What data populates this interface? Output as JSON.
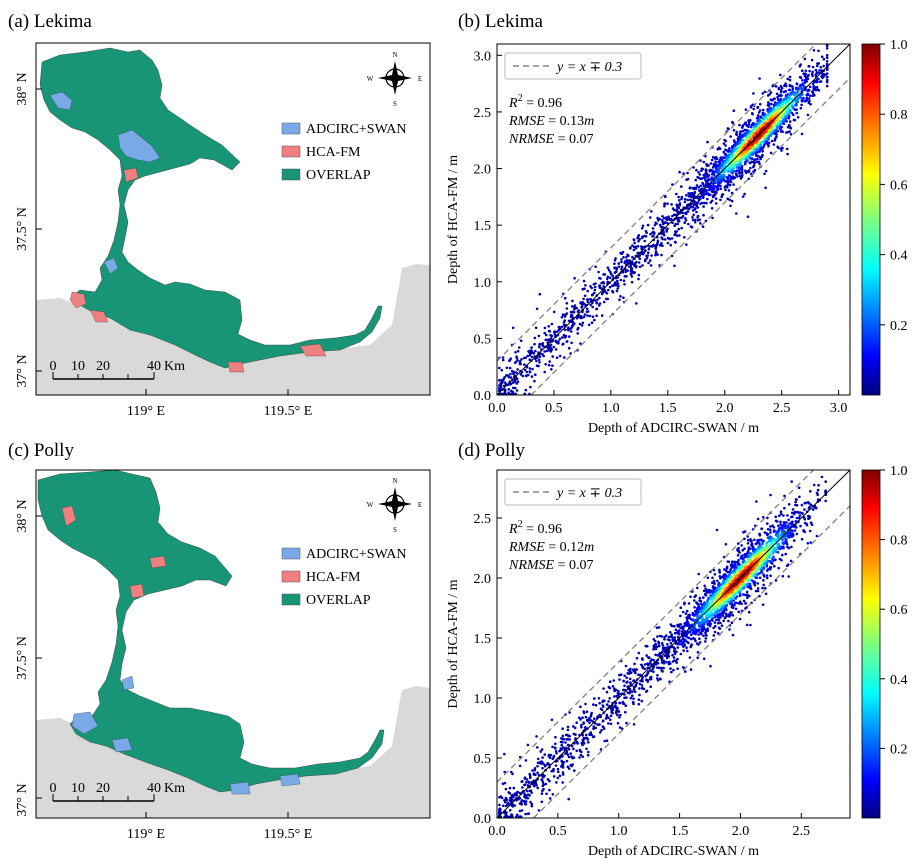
{
  "figure": {
    "panels": [
      {
        "label": "(a) Lekima"
      },
      {
        "label": "(b) Lekima"
      },
      {
        "label": "(c) Polly"
      },
      {
        "label": "(d) Polly"
      }
    ],
    "map": {
      "lat_labels_a": [
        "38° N",
        "37.5° N",
        "37° N"
      ],
      "lat_labels_c": [
        "38° N",
        "37.5° N",
        "37° N"
      ],
      "lon_labels": [
        "119° E",
        "119.5° E"
      ],
      "legend": [
        "ADCIRC+SWAN",
        "HCA-FM",
        "OVERLAP"
      ],
      "scale_labels": [
        "0",
        "10",
        "20",
        "40",
        "Km"
      ],
      "compass": [
        "N",
        "S",
        "W",
        "E"
      ],
      "colors": {
        "adcirc": "#7aa9e8",
        "hca": "#ef8080",
        "overlap": "#179576",
        "land": "#d9d9d9",
        "sea": "#ffffff"
      }
    },
    "scatter": {
      "xlabel": "Depth of ADCIRC-SWAN / m",
      "ylabel": "Depth of HCA-FM / m",
      "legend_label": "y = x ∓ 0.3",
      "colorbar_ticks": [
        "1.0",
        "0.8",
        "0.6",
        "0.4",
        "0.2"
      ],
      "colormap": [
        "#00007f",
        "#0000ff",
        "#007fff",
        "#00ffff",
        "#7fff7f",
        "#ffff00",
        "#ff7f00",
        "#ff0000",
        "#7f0000"
      ]
    }
  },
  "chart_data": [
    {
      "type": "scatter",
      "title": "(b) Lekima",
      "xlabel": "Depth of ADCIRC-SWAN / m",
      "ylabel": "Depth of HCA-FM / m",
      "xlim": [
        0,
        3.1
      ],
      "ylim": [
        0,
        3.1
      ],
      "x_ticks": [
        "0.0",
        "0.5",
        "1.0",
        "1.5",
        "2.0",
        "2.5",
        "3.0"
      ],
      "y_ticks": [
        "0.0",
        "0.5",
        "1.0",
        "1.5",
        "2.0",
        "2.5",
        "3.0"
      ],
      "stats": {
        "r2": "0.96",
        "rmse": "0.13",
        "nrmse": "0.07"
      },
      "density_peak": [
        2.3,
        2.3
      ],
      "colorbar_range": [
        0,
        1.0
      ],
      "lines": [
        "y = x",
        "y = x ∓ 0.3"
      ]
    },
    {
      "type": "scatter",
      "title": "(d) Polly",
      "xlabel": "Depth of ADCIRC-SWAN / m",
      "ylabel": "Depth of HCA-FM / m",
      "xlim": [
        0,
        2.9
      ],
      "ylim": [
        0,
        2.9
      ],
      "x_ticks": [
        "0.0",
        "0.5",
        "1.0",
        "1.5",
        "2.0",
        "2.5"
      ],
      "y_ticks": [
        "0.0",
        "0.5",
        "1.0",
        "1.5",
        "2.0",
        "2.5"
      ],
      "stats": {
        "r2": "0.96",
        "rmse": "0.12",
        "nrmse": "0.07"
      },
      "density_peak": [
        2.0,
        2.0
      ],
      "colorbar_range": [
        0,
        1.0
      ],
      "lines": [
        "y = x",
        "y = x ∓ 0.3"
      ]
    }
  ]
}
